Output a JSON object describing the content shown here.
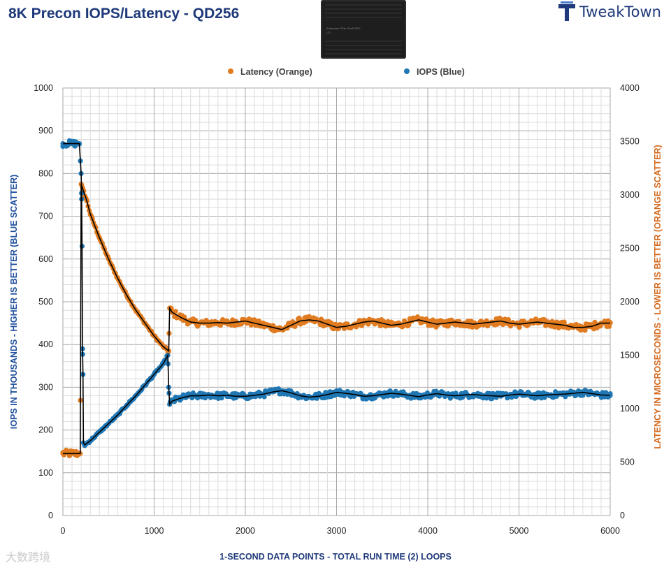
{
  "header": {
    "title": "8K Precon IOPS/Latency - QD256",
    "brand": "TweakTown",
    "product_image_lines": [
      "Enterprise PCIe Gen5 SSD",
      "U.2"
    ]
  },
  "watermark": "大数跨境",
  "colors": {
    "iops": "#1f77b4",
    "latency": "#e07b20",
    "trend": "#000000",
    "title": "#1f3a7a"
  },
  "chart_data": {
    "type": "scatter",
    "xlabel": "1-SECOND  DATA POINTS - TOTAL RUN TIME (2) LOOPS",
    "ylabel_left": "IOPS IN THOUSANDS - HIGHER IS BETTER (BLUE SCATTER)",
    "ylabel_right": "LATENCY IN MICROSECONDS - LOWER IS BETTER (ORANGE SCATTER)",
    "xlim": [
      0,
      6000
    ],
    "ylim_left": [
      0,
      1000
    ],
    "ylim_right": [
      0,
      4000
    ],
    "x_ticks": [
      0,
      1000,
      2000,
      3000,
      4000,
      5000,
      6000
    ],
    "y_ticks_left": [
      0,
      100,
      200,
      300,
      400,
      500,
      600,
      700,
      800,
      900,
      1000
    ],
    "y_ticks_right": [
      0,
      500,
      1000,
      1500,
      2000,
      2500,
      3000,
      3500,
      4000
    ],
    "grid": true,
    "legend_position": "top-center",
    "series": [
      {
        "name": "Latency (Orange)",
        "axis": "right",
        "points": [
          [
            0,
            580
          ],
          [
            100,
            580
          ],
          [
            190,
            580
          ],
          [
            200,
            3100
          ],
          [
            220,
            3050
          ],
          [
            260,
            2950
          ],
          [
            300,
            2820
          ],
          [
            400,
            2600
          ],
          [
            500,
            2400
          ],
          [
            600,
            2220
          ],
          [
            700,
            2060
          ],
          [
            800,
            1920
          ],
          [
            900,
            1800
          ],
          [
            1000,
            1680
          ],
          [
            1100,
            1580
          ],
          [
            1160,
            1540
          ],
          [
            1170,
            1940
          ],
          [
            1200,
            1900
          ],
          [
            1300,
            1850
          ],
          [
            1400,
            1810
          ],
          [
            1500,
            1800
          ],
          [
            1600,
            1800
          ],
          [
            1700,
            1805
          ],
          [
            1800,
            1800
          ],
          [
            1900,
            1810
          ],
          [
            2000,
            1820
          ],
          [
            2100,
            1800
          ],
          [
            2200,
            1780
          ],
          [
            2300,
            1760
          ],
          [
            2400,
            1740
          ],
          [
            2500,
            1780
          ],
          [
            2600,
            1820
          ],
          [
            2700,
            1830
          ],
          [
            2800,
            1820
          ],
          [
            2900,
            1790
          ],
          [
            3000,
            1760
          ],
          [
            3100,
            1770
          ],
          [
            3200,
            1790
          ],
          [
            3300,
            1810
          ],
          [
            3400,
            1820
          ],
          [
            3500,
            1800
          ],
          [
            3600,
            1780
          ],
          [
            3700,
            1790
          ],
          [
            3800,
            1810
          ],
          [
            3900,
            1830
          ],
          [
            4000,
            1810
          ],
          [
            4100,
            1790
          ],
          [
            4200,
            1800
          ],
          [
            4300,
            1810
          ],
          [
            4400,
            1800
          ],
          [
            4500,
            1790
          ],
          [
            4600,
            1800
          ],
          [
            4700,
            1810
          ],
          [
            4800,
            1820
          ],
          [
            4900,
            1800
          ],
          [
            5000,
            1790
          ],
          [
            5100,
            1800
          ],
          [
            5200,
            1810
          ],
          [
            5300,
            1800
          ],
          [
            5400,
            1790
          ],
          [
            5500,
            1780
          ],
          [
            5600,
            1760
          ],
          [
            5700,
            1760
          ],
          [
            5800,
            1770
          ],
          [
            5900,
            1800
          ],
          [
            6000,
            1800
          ]
        ]
      },
      {
        "name": "IOPS (Blue)",
        "axis": "left",
        "points": [
          [
            0,
            870
          ],
          [
            100,
            870
          ],
          [
            180,
            870
          ],
          [
            200,
            800
          ],
          [
            205,
            740
          ],
          [
            210,
            630
          ],
          [
            215,
            390
          ],
          [
            220,
            330
          ],
          [
            225,
            170
          ],
          [
            240,
            165
          ],
          [
            300,
            175
          ],
          [
            400,
            195
          ],
          [
            500,
            215
          ],
          [
            600,
            235
          ],
          [
            700,
            258
          ],
          [
            800,
            280
          ],
          [
            900,
            305
          ],
          [
            1000,
            330
          ],
          [
            1100,
            355
          ],
          [
            1150,
            375
          ],
          [
            1160,
            300
          ],
          [
            1170,
            260
          ],
          [
            1200,
            268
          ],
          [
            1300,
            275
          ],
          [
            1400,
            280
          ],
          [
            1500,
            280
          ],
          [
            1600,
            282
          ],
          [
            1700,
            280
          ],
          [
            1800,
            281
          ],
          [
            1900,
            279
          ],
          [
            2000,
            279
          ],
          [
            2100,
            281
          ],
          [
            2200,
            284
          ],
          [
            2300,
            289
          ],
          [
            2400,
            292
          ],
          [
            2500,
            287
          ],
          [
            2600,
            280
          ],
          [
            2700,
            277
          ],
          [
            2800,
            279
          ],
          [
            2900,
            283
          ],
          [
            3000,
            288
          ],
          [
            3100,
            286
          ],
          [
            3200,
            283
          ],
          [
            3300,
            279
          ],
          [
            3400,
            280
          ],
          [
            3500,
            283
          ],
          [
            3600,
            286
          ],
          [
            3700,
            284
          ],
          [
            3800,
            281
          ],
          [
            3900,
            278
          ],
          [
            4000,
            282
          ],
          [
            4100,
            285
          ],
          [
            4200,
            282
          ],
          [
            4300,
            280
          ],
          [
            4400,
            282
          ],
          [
            4500,
            283
          ],
          [
            4600,
            281
          ],
          [
            4700,
            280
          ],
          [
            4800,
            279
          ],
          [
            4900,
            282
          ],
          [
            5000,
            284
          ],
          [
            5100,
            282
          ],
          [
            5200,
            280
          ],
          [
            5300,
            282
          ],
          [
            5400,
            283
          ],
          [
            5500,
            284
          ],
          [
            5600,
            286
          ],
          [
            5700,
            288
          ],
          [
            5800,
            285
          ],
          [
            5900,
            282
          ],
          [
            6000,
            281
          ]
        ]
      }
    ]
  }
}
